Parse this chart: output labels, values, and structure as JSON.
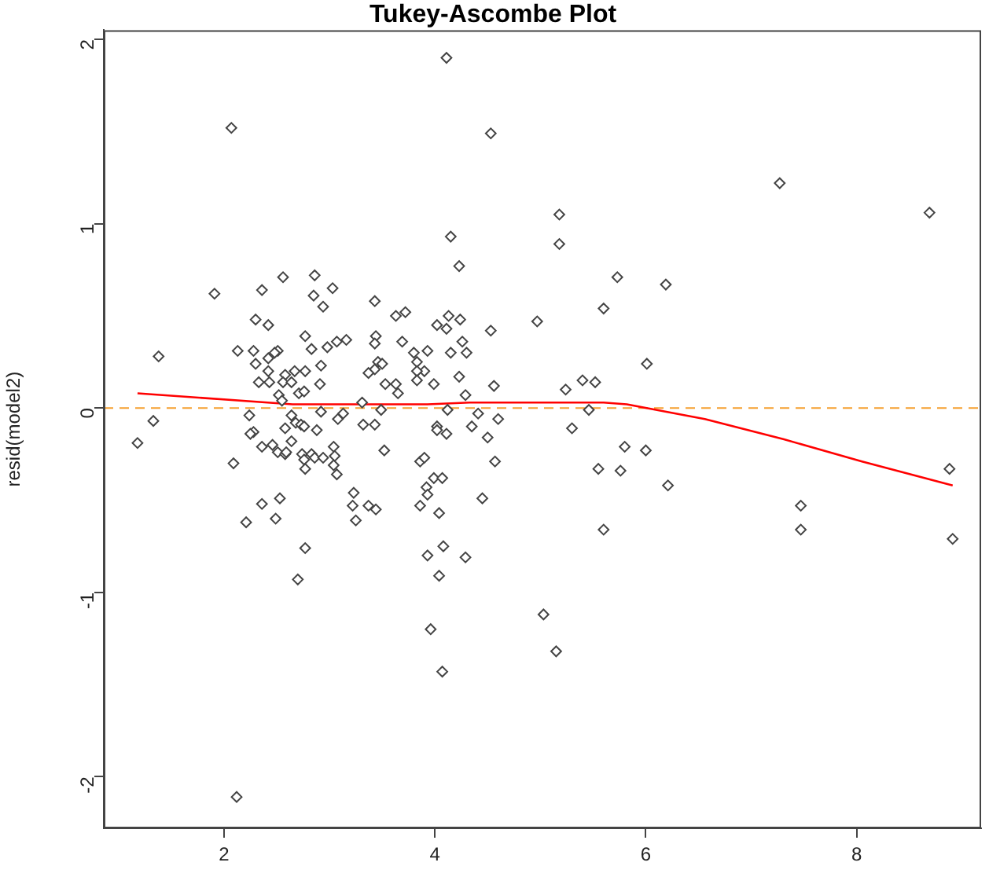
{
  "chart_data": {
    "type": "scatter",
    "title": "Tukey-Ascombe Plot",
    "ylabel": "resid(model2)",
    "xlim": [
      0.86,
      9.18
    ],
    "ylim": [
      -2.28,
      2.05
    ],
    "xticks": [
      2,
      4,
      6,
      8
    ],
    "yticks": [
      -2,
      -1,
      0,
      1,
      2
    ],
    "legend": false,
    "ref_lines": [
      {
        "axis": "y",
        "value": 0,
        "color": "#f5a030",
        "line_style": "dashed"
      }
    ],
    "series": [
      {
        "type": "scatter",
        "marker": "diamond",
        "color": "#444444",
        "x": [
          2.07,
          1.91,
          2.56,
          2.86,
          2.36,
          3.03,
          2.85,
          2.94,
          3.43,
          3.63,
          3.72,
          1.38,
          2.3,
          2.42,
          2.77,
          2.13,
          2.28,
          2.51,
          2.48,
          2.42,
          2.83,
          2.98,
          3.07,
          3.16,
          3.44,
          3.43,
          3.69,
          2.3,
          2.42,
          2.33,
          2.43,
          2.58,
          2.56,
          2.67,
          2.64,
          2.77,
          2.92,
          2.91,
          3.46,
          3.5,
          3.43,
          3.37,
          3.53,
          3.63,
          3.65,
          2.71,
          2.76,
          2.52,
          2.55,
          3.31,
          1.33,
          1.18,
          2.24,
          2.28,
          2.25,
          2.64,
          2.68,
          2.73,
          2.76,
          2.58,
          2.88,
          2.92,
          3.08,
          3.13,
          3.32,
          3.43,
          3.49,
          3.52,
          2.36,
          2.46,
          2.51,
          2.58,
          2.59,
          2.64,
          2.74,
          2.76,
          2.83,
          2.86,
          2.94,
          3.04,
          3.05,
          3.04,
          3.07,
          2.77,
          2.09,
          3.23,
          3.22,
          3.25,
          3.37,
          3.44,
          2.53,
          2.36,
          2.21,
          2.49,
          2.77,
          2.7,
          2.12,
          4.11,
          4.53,
          5.18,
          5.18,
          4.15,
          4.23,
          5.73,
          6.19,
          5.6,
          4.13,
          4.02,
          4.11,
          4.24,
          4.97,
          4.53,
          4.26,
          3.8,
          3.83,
          3.93,
          4.15,
          4.3,
          3.9,
          3.83,
          4.23,
          3.83,
          3.99,
          4.29,
          4.56,
          5.4,
          5.52,
          5.24,
          6.01,
          4.12,
          4.41,
          4.6,
          4.02,
          4.02,
          4.11,
          4.35,
          4.5,
          3.86,
          3.9,
          4.57,
          3.99,
          4.07,
          3.92,
          3.93,
          3.86,
          4.04,
          4.45,
          4.08,
          3.93,
          4.29,
          4.04,
          3.96,
          4.07,
          5.03,
          5.15,
          5.3,
          5.46,
          5.8,
          6.0,
          5.55,
          5.76,
          6.21,
          5.6,
          7.27,
          8.69,
          8.88,
          7.47,
          7.47,
          8.91
        ],
        "values": [
          1.52,
          0.62,
          0.71,
          0.72,
          0.64,
          0.65,
          0.61,
          0.55,
          0.58,
          0.5,
          0.52,
          0.28,
          0.48,
          0.45,
          0.39,
          0.31,
          0.31,
          0.31,
          0.3,
          0.27,
          0.32,
          0.33,
          0.36,
          0.37,
          0.39,
          0.35,
          0.36,
          0.24,
          0.2,
          0.14,
          0.14,
          0.18,
          0.14,
          0.2,
          0.14,
          0.2,
          0.23,
          0.13,
          0.25,
          0.24,
          0.21,
          0.19,
          0.13,
          0.13,
          0.08,
          0.08,
          0.09,
          0.07,
          0.04,
          0.03,
          -0.07,
          -0.19,
          -0.04,
          -0.13,
          -0.14,
          -0.04,
          -0.08,
          -0.09,
          -0.1,
          -0.11,
          -0.12,
          -0.02,
          -0.06,
          -0.03,
          -0.09,
          -0.09,
          -0.01,
          -0.23,
          -0.21,
          -0.2,
          -0.24,
          -0.25,
          -0.24,
          -0.18,
          -0.25,
          -0.28,
          -0.25,
          -0.27,
          -0.27,
          -0.21,
          -0.26,
          -0.31,
          -0.36,
          -0.33,
          -0.3,
          -0.46,
          -0.53,
          -0.61,
          -0.53,
          -0.55,
          -0.49,
          -0.52,
          -0.62,
          -0.6,
          -0.76,
          -0.93,
          -2.11,
          1.9,
          1.49,
          1.05,
          0.89,
          0.93,
          0.77,
          0.71,
          0.67,
          0.54,
          0.5,
          0.45,
          0.43,
          0.48,
          0.47,
          0.42,
          0.36,
          0.3,
          0.25,
          0.31,
          0.3,
          0.3,
          0.2,
          0.2,
          0.17,
          0.15,
          0.13,
          0.07,
          0.12,
          0.15,
          0.14,
          0.1,
          0.24,
          -0.01,
          -0.03,
          -0.06,
          -0.1,
          -0.12,
          -0.14,
          -0.1,
          -0.16,
          -0.29,
          -0.27,
          -0.29,
          -0.38,
          -0.38,
          -0.43,
          -0.47,
          -0.53,
          -0.57,
          -0.49,
          -0.75,
          -0.8,
          -0.81,
          -0.91,
          -1.2,
          -1.43,
          -1.12,
          -1.32,
          -0.11,
          -0.01,
          -0.21,
          -0.23,
          -0.33,
          -0.34,
          -0.42,
          -0.66,
          1.22,
          1.06,
          -0.33,
          -0.53,
          -0.66,
          -0.71
        ]
      },
      {
        "type": "line",
        "marker": "none",
        "color": "#ff0000",
        "x": [
          1.18,
          2.65,
          3.93,
          4.33,
          5.6,
          5.82,
          6.56,
          7.31,
          8.05,
          8.91
        ],
        "values": [
          0.08,
          0.02,
          0.02,
          0.03,
          0.03,
          0.02,
          -0.06,
          -0.17,
          -0.29,
          -0.42
        ]
      }
    ]
  }
}
